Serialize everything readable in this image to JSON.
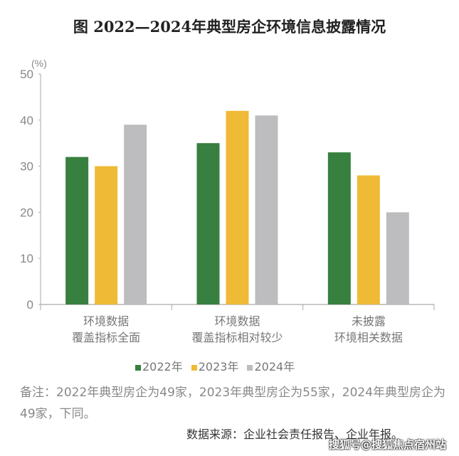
{
  "title": "图   2022—2024年典型房企环境信息披露情况",
  "chart_data": {
    "type": "bar",
    "title": "图   2022—2024年典型房企环境信息披露情况",
    "ylabel": "(%)",
    "ylim": [
      0,
      50
    ],
    "yticks": [
      "0",
      "10",
      "20",
      "30",
      "40",
      "50"
    ],
    "categories": [
      [
        "环境数据",
        "覆盖指标全面"
      ],
      [
        "环境数据",
        "覆盖指标相对较少"
      ],
      [
        "未披露",
        "环境相关数据"
      ]
    ],
    "series": [
      {
        "name": "2022年",
        "color": "#37803F",
        "values": [
          32,
          35,
          33
        ]
      },
      {
        "name": "2023年",
        "color": "#EFBA36",
        "values": [
          30,
          42,
          28
        ]
      },
      {
        "name": "2024年",
        "color": "#BDBDC0",
        "values": [
          39,
          41,
          20
        ]
      }
    ],
    "grid": false,
    "legend": "bottom"
  },
  "note": "备注：2022年典型房企为49家，2023年典型房企为55家，2024年典型房企为49家，下同。",
  "source": "数据来源：企业社会责任报告、企业年报。",
  "watermark": "搜狐号@搜狐焦点宿州站"
}
